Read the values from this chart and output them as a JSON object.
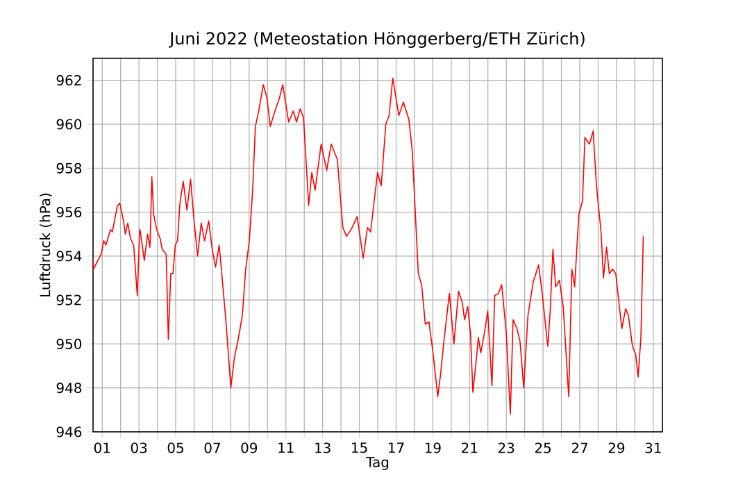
{
  "chart_data": {
    "type": "line",
    "title": "Juni 2022  (Meteostation Hönggerberg/ETH Zürich)",
    "xlabel": "Tag",
    "ylabel": "Luftdruck (hPa)",
    "xlim": [
      0.5,
      31.5
    ],
    "ylim": [
      946,
      963
    ],
    "xticks": [
      {
        "value": 1,
        "label": "01"
      },
      {
        "value": 2,
        "label": null
      },
      {
        "value": 3,
        "label": "03"
      },
      {
        "value": 4,
        "label": null
      },
      {
        "value": 5,
        "label": "05"
      },
      {
        "value": 6,
        "label": null
      },
      {
        "value": 7,
        "label": "07"
      },
      {
        "value": 8,
        "label": null
      },
      {
        "value": 9,
        "label": "09"
      },
      {
        "value": 10,
        "label": null
      },
      {
        "value": 11,
        "label": "11"
      },
      {
        "value": 12,
        "label": null
      },
      {
        "value": 13,
        "label": "13"
      },
      {
        "value": 14,
        "label": null
      },
      {
        "value": 15,
        "label": "15"
      },
      {
        "value": 16,
        "label": null
      },
      {
        "value": 17,
        "label": "17"
      },
      {
        "value": 18,
        "label": null
      },
      {
        "value": 19,
        "label": "19"
      },
      {
        "value": 20,
        "label": null
      },
      {
        "value": 21,
        "label": "21"
      },
      {
        "value": 22,
        "label": null
      },
      {
        "value": 23,
        "label": "23"
      },
      {
        "value": 24,
        "label": null
      },
      {
        "value": 25,
        "label": "25"
      },
      {
        "value": 26,
        "label": null
      },
      {
        "value": 27,
        "label": "27"
      },
      {
        "value": 28,
        "label": null
      },
      {
        "value": 29,
        "label": "29"
      },
      {
        "value": 30,
        "label": null
      },
      {
        "value": 31,
        "label": "31"
      }
    ],
    "yticks": [
      946,
      948,
      950,
      952,
      954,
      956,
      958,
      960,
      962
    ],
    "grid": true,
    "marker": "none",
    "line_style": "solid",
    "series": [
      {
        "color": "#ff0000",
        "x": [
          0.5,
          0.52,
          0.95,
          1.08,
          1.2,
          1.45,
          1.55,
          1.83,
          1.96,
          2.16,
          2.26,
          2.39,
          2.54,
          2.71,
          2.91,
          3.04,
          3.08,
          3.29,
          3.47,
          3.6,
          3.7,
          3.8,
          3.97,
          4.15,
          4.27,
          4.48,
          4.6,
          4.73,
          4.85,
          4.98,
          5.1,
          5.23,
          5.41,
          5.61,
          5.81,
          5.99,
          6.19,
          6.39,
          6.57,
          6.8,
          6.99,
          7.17,
          7.37,
          7.75,
          8.0,
          8.2,
          8.38,
          8.63,
          8.81,
          9.01,
          9.19,
          9.34,
          9.52,
          9.77,
          9.97,
          10.15,
          10.4,
          10.65,
          10.83,
          11.15,
          11.4,
          11.58,
          11.78,
          11.96,
          12.24,
          12.41,
          12.59,
          12.92,
          13.22,
          13.47,
          13.8,
          14.1,
          14.3,
          14.55,
          14.88,
          15.21,
          15.44,
          15.61,
          15.99,
          16.19,
          16.44,
          16.62,
          16.82,
          17.15,
          17.4,
          17.7,
          17.88,
          18.21,
          18.39,
          18.59,
          18.79,
          19.01,
          19.27,
          19.42,
          19.6,
          19.9,
          20.15,
          20.4,
          20.6,
          20.73,
          20.9,
          21.05,
          21.18,
          21.31,
          21.48,
          21.61,
          21.81,
          21.99,
          22.22,
          22.37,
          22.57,
          22.75,
          23.0,
          23.22,
          23.37,
          23.58,
          23.75,
          23.95,
          24.18,
          24.46,
          24.76,
          24.94,
          25.26,
          25.39,
          25.54,
          25.69,
          25.89,
          26.1,
          26.4,
          26.57,
          26.72,
          26.95,
          27.15,
          27.28,
          27.53,
          27.73,
          27.91,
          28.16,
          28.29,
          28.46,
          28.61,
          28.79,
          28.96,
          29.29,
          29.5,
          29.65,
          29.87,
          30.05,
          30.18,
          30.33,
          30.46
        ],
        "values": [
          953.9,
          953.4,
          954.1,
          954.7,
          954.5,
          955.2,
          955.1,
          956.3,
          956.4,
          955.6,
          955.0,
          955.5,
          954.8,
          954.5,
          952.2,
          955.2,
          955.1,
          953.8,
          955.0,
          954.4,
          957.6,
          955.9,
          955.2,
          954.8,
          954.3,
          954.1,
          950.2,
          953.2,
          953.2,
          954.5,
          954.7,
          956.4,
          957.4,
          956.1,
          957.5,
          955.7,
          954.0,
          955.5,
          954.7,
          955.6,
          954.3,
          953.5,
          954.5,
          950.9,
          948.0,
          949.4,
          950.1,
          951.3,
          953.4,
          954.7,
          957.0,
          959.9,
          960.6,
          961.8,
          961.2,
          959.9,
          960.6,
          961.2,
          961.8,
          960.1,
          960.6,
          960.1,
          960.7,
          960.3,
          956.3,
          957.8,
          957.0,
          959.1,
          957.9,
          959.1,
          958.4,
          955.3,
          954.9,
          955.2,
          955.8,
          953.9,
          955.3,
          955.1,
          957.8,
          957.2,
          960.0,
          960.4,
          962.1,
          960.4,
          961.0,
          960.2,
          958.8,
          953.2,
          952.7,
          950.9,
          951.0,
          949.6,
          947.6,
          948.6,
          950.1,
          952.3,
          950.0,
          952.4,
          951.9,
          951.1,
          951.7,
          950.5,
          947.8,
          948.8,
          950.3,
          949.6,
          950.5,
          951.5,
          948.1,
          952.2,
          952.3,
          952.7,
          950.5,
          946.8,
          951.1,
          950.7,
          950.1,
          948.0,
          951.3,
          952.8,
          953.6,
          952.4,
          949.9,
          951.5,
          954.3,
          952.6,
          952.9,
          951.7,
          947.6,
          953.4,
          952.6,
          955.9,
          956.5,
          959.4,
          959.1,
          959.7,
          957.2,
          955.1,
          953.0,
          954.4,
          953.2,
          953.4,
          953.2,
          950.7,
          951.6,
          951.3,
          949.9,
          949.5,
          948.5,
          950.3,
          954.9
        ]
      }
    ]
  }
}
